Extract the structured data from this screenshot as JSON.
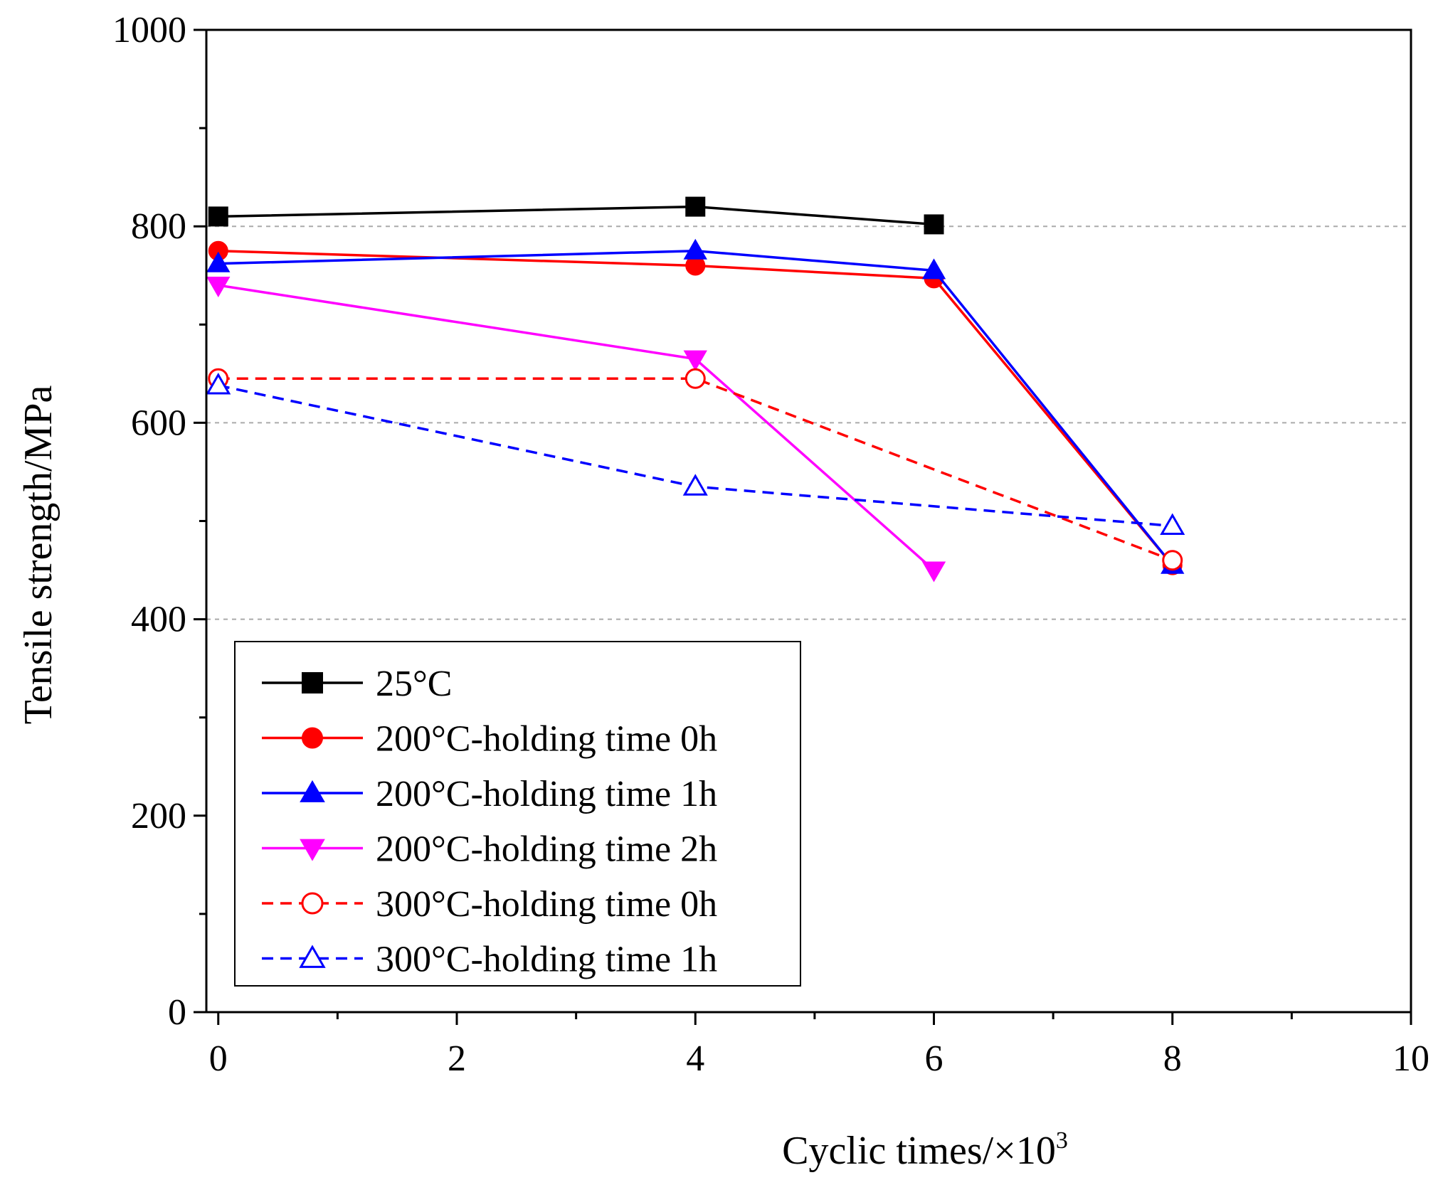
{
  "chart_data": {
    "type": "line",
    "title": "",
    "xlabel": "Cyclic times/×10",
    "xlabel_superscript": "3",
    "ylabel": "Tensile strength/MPa",
    "xlim": [
      -0.1,
      10
    ],
    "ylim": [
      0,
      1000
    ],
    "xticks": [
      0,
      2,
      4,
      6,
      8,
      10
    ],
    "yticks": [
      0,
      200,
      400,
      600,
      800,
      1000
    ],
    "xtick_labels": [
      "0",
      "2",
      "4",
      "6",
      "8",
      "10"
    ],
    "ytick_labels": [
      "0",
      "200",
      "400",
      "600",
      "800",
      "1000"
    ],
    "grid": "horizontal dashed at 400, 600, 800",
    "legend_position": "lower-left",
    "series": [
      {
        "name": "25°C",
        "color": "#000000",
        "marker": "square",
        "filled": true,
        "dashed": false,
        "x": [
          0,
          4,
          6
        ],
        "y": [
          810,
          820,
          802
        ]
      },
      {
        "name": "200°C-holding time 0h",
        "color": "#ff0000",
        "marker": "circle",
        "filled": true,
        "dashed": false,
        "x": [
          0,
          4,
          6,
          8
        ],
        "y": [
          775,
          760,
          747,
          455
        ]
      },
      {
        "name": "200°C-holding time 1h",
        "color": "#0000ff",
        "marker": "triangle-up",
        "filled": true,
        "dashed": false,
        "x": [
          0,
          4,
          6,
          8
        ],
        "y": [
          762,
          775,
          755,
          455
        ]
      },
      {
        "name": "200°C-holding time 2h",
        "color": "#ff00ff",
        "marker": "triangle-down",
        "filled": true,
        "dashed": false,
        "x": [
          0,
          4,
          6
        ],
        "y": [
          740,
          665,
          450
        ]
      },
      {
        "name": "300°C-holding time 0h",
        "color": "#ff0000",
        "marker": "circle",
        "filled": false,
        "dashed": true,
        "x": [
          0,
          4,
          8
        ],
        "y": [
          645,
          645,
          460
        ]
      },
      {
        "name": "300°C-holding time 1h",
        "color": "#0000ff",
        "marker": "triangle-up",
        "filled": false,
        "dashed": true,
        "x": [
          0,
          4,
          8
        ],
        "y": [
          638,
          535,
          495
        ]
      }
    ]
  }
}
